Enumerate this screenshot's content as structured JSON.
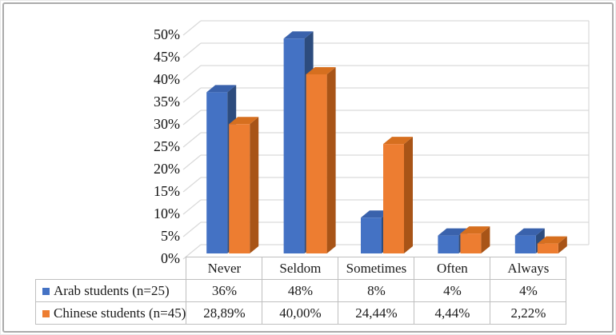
{
  "chart_data": {
    "type": "bar",
    "variant": "3d-clustered-column",
    "title": "",
    "xlabel": "",
    "ylabel": "",
    "categories": [
      "Never",
      "Seldom",
      "Sometimes",
      "Often",
      "Always"
    ],
    "series": [
      {
        "name": "Arab students (n=25)",
        "values": [
          36,
          48,
          8,
          4,
          4
        ],
        "labels": [
          "36%",
          "48%",
          "8%",
          "4%",
          "4%"
        ],
        "color_front": "#4472C4",
        "color_top": "#3A62AC",
        "color_side": "#2D4C7E"
      },
      {
        "name": "Chinese students (n=45)",
        "values": [
          28.89,
          40.0,
          24.44,
          4.44,
          2.22
        ],
        "labels": [
          "28,89%",
          "40,00%",
          "24,44%",
          "4,44%",
          "2,22%"
        ],
        "color_front": "#ED7D31",
        "color_top": "#D66F1F",
        "color_side": "#A85417"
      }
    ],
    "ylim": [
      0,
      50
    ],
    "ytick_step": 5,
    "ytick_suffix": "%",
    "ytick_labels": [
      "0%",
      "5%",
      "10%",
      "15%",
      "20%",
      "25%",
      "30%",
      "35%",
      "40%",
      "45%",
      "50%"
    ],
    "grid": true,
    "gridline_color": "#D9D9D9",
    "table_border_color": "#BFBFBF",
    "legend_position": "data-table-left"
  }
}
